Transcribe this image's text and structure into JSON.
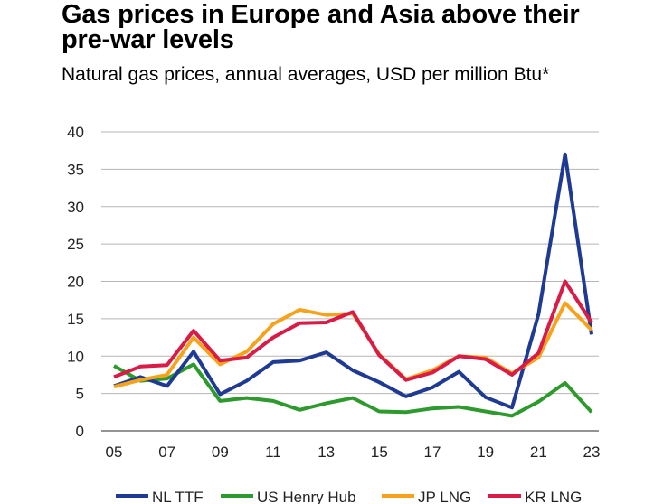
{
  "title": "Gas prices in Europe and Asia above their pre-war levels",
  "subtitle": "Natural gas prices, annual averages, USD per million Btu*",
  "chart_data": {
    "type": "line",
    "title": "Gas prices in Europe and Asia above their pre-war levels",
    "subtitle": "Natural gas prices, annual averages, USD per million Btu*",
    "x": [
      2005,
      2006,
      2007,
      2008,
      2009,
      2010,
      2011,
      2012,
      2013,
      2014,
      2015,
      2016,
      2017,
      2018,
      2019,
      2020,
      2021,
      2022,
      2023
    ],
    "x_tick_labels": [
      "05",
      "07",
      "09",
      "11",
      "13",
      "15",
      "17",
      "19",
      "21",
      "23"
    ],
    "x_tick_values": [
      2005,
      2007,
      2009,
      2011,
      2013,
      2015,
      2017,
      2019,
      2021,
      2023
    ],
    "ylim": [
      0,
      40
    ],
    "y_ticks": [
      0,
      5,
      10,
      15,
      20,
      25,
      30,
      35,
      40
    ],
    "grid": "horizontal",
    "legend_position": "bottom",
    "series": [
      {
        "name": "NL TTF",
        "color": "#1f3a93",
        "values": [
          6.0,
          7.2,
          6.0,
          10.6,
          4.9,
          6.7,
          9.2,
          9.4,
          10.5,
          8.1,
          6.5,
          4.6,
          5.8,
          7.9,
          4.5,
          3.1,
          15.6,
          37.0,
          12.9
        ]
      },
      {
        "name": "US Henry Hub",
        "color": "#2e9a2e",
        "values": [
          8.7,
          6.7,
          7.0,
          8.9,
          4.0,
          4.4,
          4.0,
          2.8,
          3.7,
          4.4,
          2.6,
          2.5,
          3.0,
          3.2,
          2.6,
          2.0,
          3.9,
          6.4,
          2.5
        ]
      },
      {
        "name": "JP LNG",
        "color": "#f7a21b",
        "values": [
          5.9,
          6.8,
          7.5,
          12.5,
          8.9,
          10.6,
          14.3,
          16.2,
          15.5,
          15.7,
          10.2,
          6.9,
          8.1,
          10.0,
          9.8,
          7.7,
          9.8,
          17.1,
          13.5
        ]
      },
      {
        "name": "KR LNG",
        "color": "#d81b47",
        "values": [
          7.2,
          8.6,
          8.8,
          13.4,
          9.4,
          9.8,
          12.5,
          14.4,
          14.5,
          15.9,
          10.1,
          6.8,
          7.8,
          10.0,
          9.6,
          7.5,
          10.4,
          20.0,
          14.5
        ]
      }
    ]
  }
}
